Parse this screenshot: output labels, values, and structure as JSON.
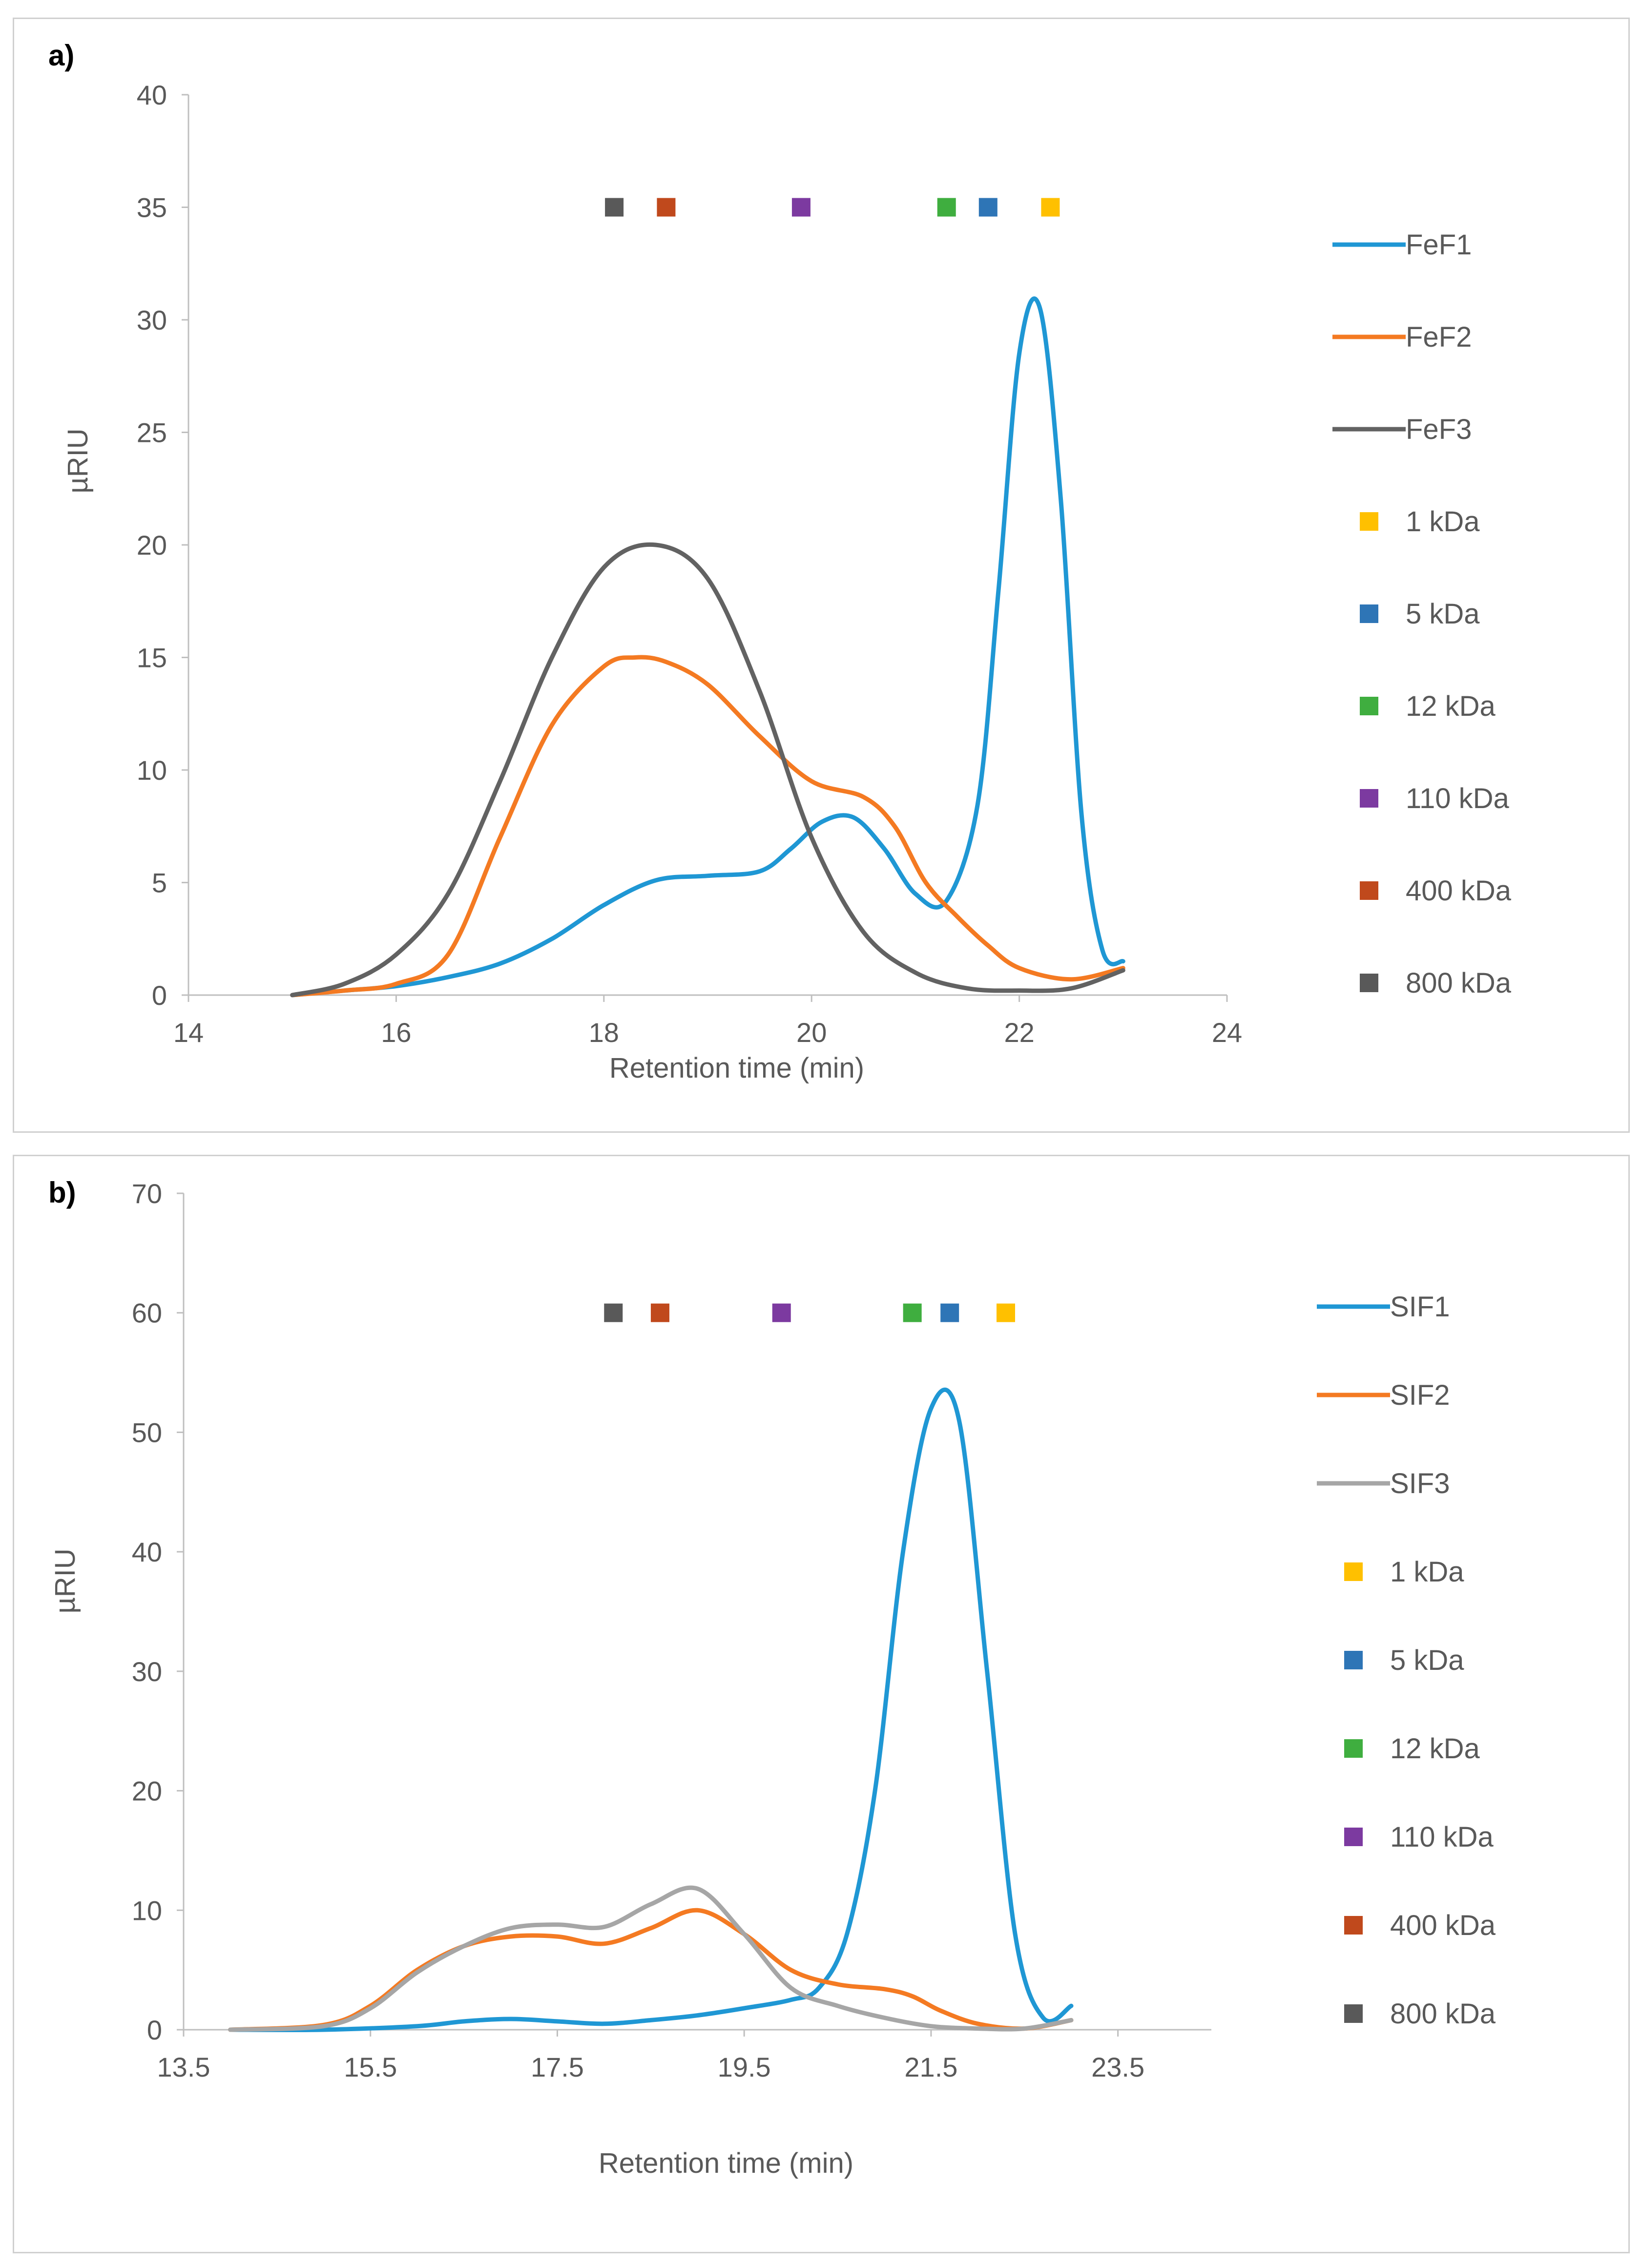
{
  "chart_data": [
    {
      "type": "line",
      "panel_label": "a)",
      "xlabel": "Retention time (min)",
      "ylabel": "µRIU",
      "xlim": [
        14,
        24
      ],
      "ylim": [
        0,
        40
      ],
      "x_ticks": [
        14,
        16,
        18,
        20,
        22,
        24
      ],
      "y_ticks": [
        0,
        5,
        10,
        15,
        20,
        25,
        30,
        35,
        40
      ],
      "legend_position": "right",
      "series": [
        {
          "name": "FeF1",
          "color": "#1f97d4",
          "x": [
            15,
            15.5,
            16,
            16.5,
            17,
            17.5,
            18,
            18.5,
            19,
            19.5,
            19.8,
            20.1,
            20.4,
            20.7,
            21,
            21.3,
            21.6,
            21.8,
            22,
            22.2,
            22.4,
            22.6,
            22.8,
            23
          ],
          "y": [
            0,
            0.2,
            0.4,
            0.8,
            1.4,
            2.5,
            4,
            5.1,
            5.3,
            5.5,
            6.5,
            7.7,
            7.9,
            6.5,
            4.5,
            4.2,
            8.5,
            18,
            28.5,
            30.5,
            22,
            8,
            2,
            1.5
          ]
        },
        {
          "name": "FeF2",
          "color": "#f47a22",
          "x": [
            15,
            15.5,
            16,
            16.5,
            17,
            17.5,
            18,
            18.3,
            18.6,
            19,
            19.5,
            20,
            20.5,
            20.8,
            21.1,
            21.4,
            21.7,
            22,
            22.5,
            23
          ],
          "y": [
            0,
            0.2,
            0.5,
            1.8,
            7,
            12,
            14.6,
            15,
            14.8,
            13.8,
            11.5,
            9.5,
            8.8,
            7.5,
            5,
            3.5,
            2.2,
            1.2,
            0.7,
            1.2
          ]
        },
        {
          "name": "FeF3",
          "color": "#626262",
          "x": [
            15,
            15.5,
            16,
            16.5,
            17,
            17.5,
            18,
            18.5,
            19,
            19.5,
            20,
            20.5,
            21,
            21.5,
            22,
            22.5,
            23
          ],
          "y": [
            0,
            0.5,
            1.8,
            4.5,
            9.5,
            15,
            19,
            20,
            18.5,
            13.5,
            7,
            2.8,
            1,
            0.3,
            0.2,
            0.3,
            1.1
          ]
        }
      ],
      "markers": [
        {
          "name": "1 kDa",
          "color": "#ffc000",
          "x": 22.3,
          "y": 35
        },
        {
          "name": "5 kDa",
          "color": "#2e75b6",
          "x": 21.7,
          "y": 35
        },
        {
          "name": "12 kDa",
          "color": "#3fae3f",
          "x": 21.3,
          "y": 35
        },
        {
          "name": "110 kDa",
          "color": "#7c3aa0",
          "x": 19.9,
          "y": 35
        },
        {
          "name": "400 kDa",
          "color": "#c0491c",
          "x": 18.6,
          "y": 35
        },
        {
          "name": "800 kDa",
          "color": "#595959",
          "x": 18.1,
          "y": 35
        }
      ]
    },
    {
      "type": "line",
      "panel_label": "b)",
      "xlabel": "Retention time (min)",
      "ylabel": "µRIU",
      "xlim": [
        13.5,
        24.5
      ],
      "ylim": [
        0,
        70
      ],
      "x_ticks": [
        13.5,
        15.5,
        17.5,
        19.5,
        21.5,
        23.5
      ],
      "x_tick_labels": [
        "13.5",
        "15.5",
        "17.5",
        "19.5",
        "21.5",
        "23.5"
      ],
      "y_ticks": [
        0,
        10,
        20,
        30,
        40,
        50,
        60,
        70
      ],
      "legend_position": "right",
      "series": [
        {
          "name": "SIF1",
          "color": "#1f97d4",
          "x": [
            14,
            15,
            16,
            16.5,
            17,
            17.5,
            18,
            18.5,
            19,
            19.5,
            20,
            20.3,
            20.6,
            20.9,
            21.2,
            21.5,
            21.8,
            22.1,
            22.4,
            22.7,
            23
          ],
          "y": [
            0,
            0,
            0.3,
            0.7,
            0.9,
            0.7,
            0.5,
            0.8,
            1.2,
            1.8,
            2.5,
            3.5,
            8,
            20,
            40,
            52,
            51,
            30,
            8,
            1,
            2
          ]
        },
        {
          "name": "SIF2",
          "color": "#f47a22",
          "x": [
            14,
            15,
            15.5,
            16,
            16.5,
            17,
            17.5,
            18,
            18.5,
            19,
            19.5,
            20,
            20.5,
            21,
            21.3,
            21.6,
            22,
            22.5,
            23
          ],
          "y": [
            0,
            0.4,
            2,
            5,
            7,
            7.8,
            7.8,
            7.2,
            8.5,
            10,
            8,
            5,
            3.8,
            3.4,
            2.8,
            1.6,
            0.5,
            0.1,
            0.8
          ]
        },
        {
          "name": "SIF3",
          "color": "#a6a6a6",
          "x": [
            14,
            15,
            15.5,
            16,
            16.5,
            17,
            17.5,
            18,
            18.5,
            19,
            19.5,
            20,
            20.5,
            21,
            21.5,
            22,
            22.5,
            23
          ],
          "y": [
            0,
            0.3,
            1.8,
            4.8,
            7,
            8.5,
            8.8,
            8.6,
            10.5,
            11.8,
            8,
            3.5,
            2,
            1,
            0.3,
            0.1,
            0.1,
            0.8
          ]
        }
      ],
      "markers": [
        {
          "name": "1 kDa",
          "color": "#ffc000",
          "x": 22.3,
          "y": 60
        },
        {
          "name": "5 kDa",
          "color": "#2e75b6",
          "x": 21.7,
          "y": 60
        },
        {
          "name": "12 kDa",
          "color": "#3fae3f",
          "x": 21.3,
          "y": 60
        },
        {
          "name": "110 kDa",
          "color": "#7c3aa0",
          "x": 19.9,
          "y": 60
        },
        {
          "name": "400 kDa",
          "color": "#c0491c",
          "x": 18.6,
          "y": 60
        },
        {
          "name": "800 kDa",
          "color": "#595959",
          "x": 18.1,
          "y": 60
        }
      ]
    }
  ]
}
